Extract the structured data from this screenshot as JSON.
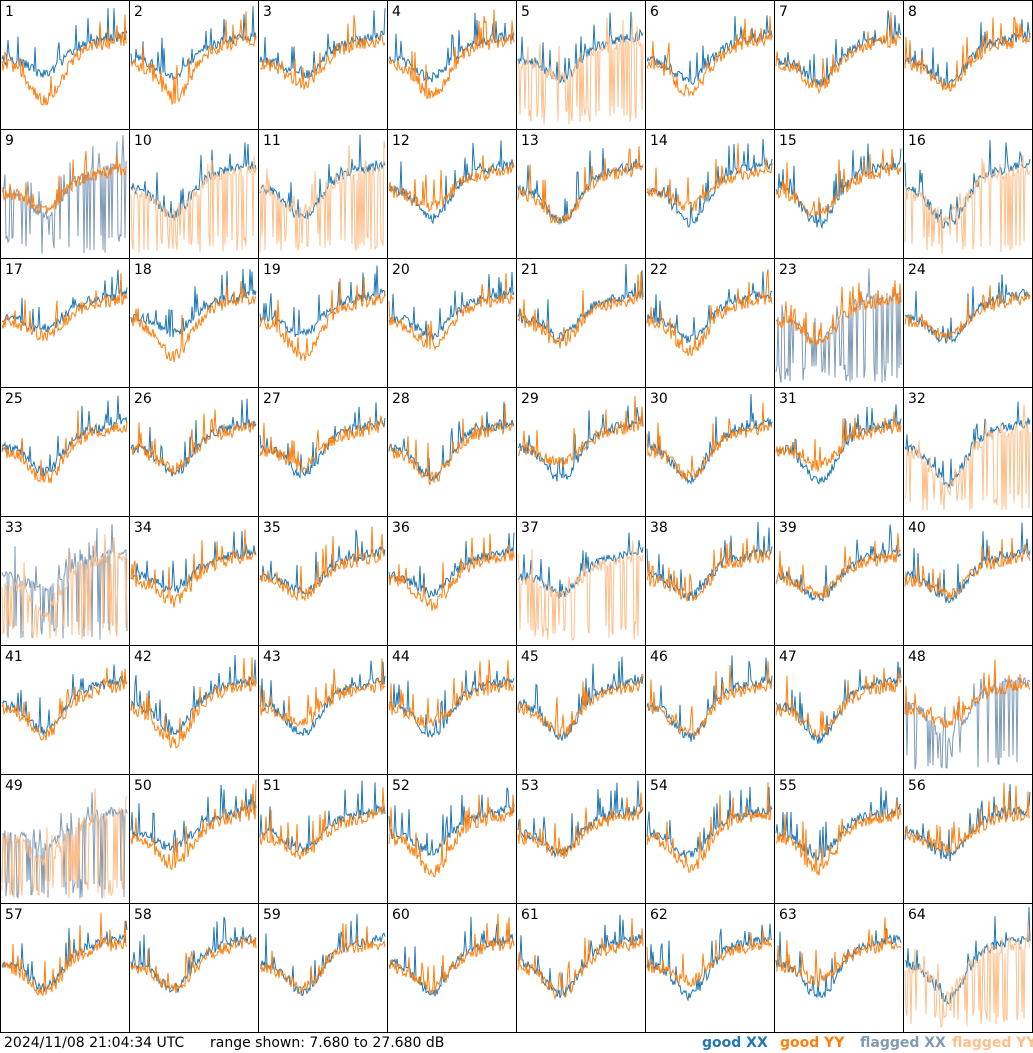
{
  "timestamp": "2024/11/08 21:04:34 UTC",
  "range": "range shown: 7.680 to 27.680 dB",
  "legend": [
    {
      "label": "good XX",
      "color": "#1f77b4"
    },
    {
      "label": "good YY",
      "color": "#ff7f0e"
    },
    {
      "label": "flagged XX",
      "color": "#7f9ab5"
    },
    {
      "label": "flagged YY",
      "color": "#ffbf8a"
    }
  ],
  "panels": [
    {
      "label": "1",
      "xx": "good XX",
      "yy": "good YY"
    },
    {
      "label": "2",
      "xx": "good XX",
      "yy": "good YY"
    },
    {
      "label": "3",
      "xx": "good XX",
      "yy": "good YY"
    },
    {
      "label": "4",
      "xx": "good XX",
      "yy": "good YY"
    },
    {
      "label": "5",
      "xx": "good XX",
      "yy": "flagged YY"
    },
    {
      "label": "6",
      "xx": "good XX",
      "yy": "good YY"
    },
    {
      "label": "7",
      "xx": "good XX",
      "yy": "good YY"
    },
    {
      "label": "8",
      "xx": "good XX",
      "yy": "good YY"
    },
    {
      "label": "9",
      "xx": "flagged XX",
      "yy": "good YY"
    },
    {
      "label": "10",
      "xx": "good XX",
      "yy": "flagged YY"
    },
    {
      "label": "11",
      "xx": "good XX",
      "yy": "flagged YY"
    },
    {
      "label": "12",
      "xx": "good XX",
      "yy": "good YY"
    },
    {
      "label": "13",
      "xx": "good XX",
      "yy": "good YY"
    },
    {
      "label": "14",
      "xx": "good XX",
      "yy": "good YY"
    },
    {
      "label": "15",
      "xx": "good XX",
      "yy": "good YY"
    },
    {
      "label": "16",
      "xx": "good XX",
      "yy": "flagged YY"
    },
    {
      "label": "17",
      "xx": "good XX",
      "yy": "good YY"
    },
    {
      "label": "18",
      "xx": "good XX",
      "yy": "good YY"
    },
    {
      "label": "19",
      "xx": "good XX",
      "yy": "good YY"
    },
    {
      "label": "20",
      "xx": "good XX",
      "yy": "good YY"
    },
    {
      "label": "21",
      "xx": "good XX",
      "yy": "good YY"
    },
    {
      "label": "22",
      "xx": "good XX",
      "yy": "good YY"
    },
    {
      "label": "23",
      "xx": "flagged XX",
      "yy": "good YY"
    },
    {
      "label": "24",
      "xx": "good XX",
      "yy": "good YY"
    },
    {
      "label": "25",
      "xx": "good XX",
      "yy": "good YY"
    },
    {
      "label": "26",
      "xx": "good XX",
      "yy": "good YY"
    },
    {
      "label": "27",
      "xx": "good XX",
      "yy": "good YY"
    },
    {
      "label": "28",
      "xx": "good XX",
      "yy": "good YY"
    },
    {
      "label": "29",
      "xx": "good XX",
      "yy": "good YY"
    },
    {
      "label": "30",
      "xx": "good XX",
      "yy": "good YY"
    },
    {
      "label": "31",
      "xx": "good XX",
      "yy": "good YY"
    },
    {
      "label": "32",
      "xx": "good XX",
      "yy": "flagged YY"
    },
    {
      "label": "33",
      "xx": "flagged XX",
      "yy": "flagged YY"
    },
    {
      "label": "34",
      "xx": "good XX",
      "yy": "good YY"
    },
    {
      "label": "35",
      "xx": "good XX",
      "yy": "good YY"
    },
    {
      "label": "36",
      "xx": "good XX",
      "yy": "good YY"
    },
    {
      "label": "37",
      "xx": "good XX",
      "yy": "flagged YY"
    },
    {
      "label": "38",
      "xx": "good XX",
      "yy": "good YY"
    },
    {
      "label": "39",
      "xx": "good XX",
      "yy": "good YY"
    },
    {
      "label": "40",
      "xx": "good XX",
      "yy": "good YY"
    },
    {
      "label": "41",
      "xx": "good XX",
      "yy": "good YY"
    },
    {
      "label": "42",
      "xx": "good XX",
      "yy": "good YY"
    },
    {
      "label": "43",
      "xx": "good XX",
      "yy": "good YY"
    },
    {
      "label": "44",
      "xx": "good XX",
      "yy": "good YY"
    },
    {
      "label": "45",
      "xx": "good XX",
      "yy": "good YY"
    },
    {
      "label": "46",
      "xx": "good XX",
      "yy": "good YY"
    },
    {
      "label": "47",
      "xx": "good XX",
      "yy": "good YY"
    },
    {
      "label": "48",
      "xx": "flagged XX",
      "yy": "good YY"
    },
    {
      "label": "49",
      "xx": "flagged XX",
      "yy": "flagged YY"
    },
    {
      "label": "50",
      "xx": "good XX",
      "yy": "good YY"
    },
    {
      "label": "51",
      "xx": "good XX",
      "yy": "good YY"
    },
    {
      "label": "52",
      "xx": "good XX",
      "yy": "good YY"
    },
    {
      "label": "53",
      "xx": "good XX",
      "yy": "good YY"
    },
    {
      "label": "54",
      "xx": "good XX",
      "yy": "good YY"
    },
    {
      "label": "55",
      "xx": "good XX",
      "yy": "good YY"
    },
    {
      "label": "56",
      "xx": "good XX",
      "yy": "good YY"
    },
    {
      "label": "57",
      "xx": "good XX",
      "yy": "good YY"
    },
    {
      "label": "58",
      "xx": "good XX",
      "yy": "good YY"
    },
    {
      "label": "59",
      "xx": "good XX",
      "yy": "good YY"
    },
    {
      "label": "60",
      "xx": "good XX",
      "yy": "good YY"
    },
    {
      "label": "61",
      "xx": "good XX",
      "yy": "good YY"
    },
    {
      "label": "62",
      "xx": "good XX",
      "yy": "good YY"
    },
    {
      "label": "63",
      "xx": "good XX",
      "yy": "good YY"
    },
    {
      "label": "64",
      "xx": "good XX",
      "yy": "flagged YY"
    }
  ]
}
